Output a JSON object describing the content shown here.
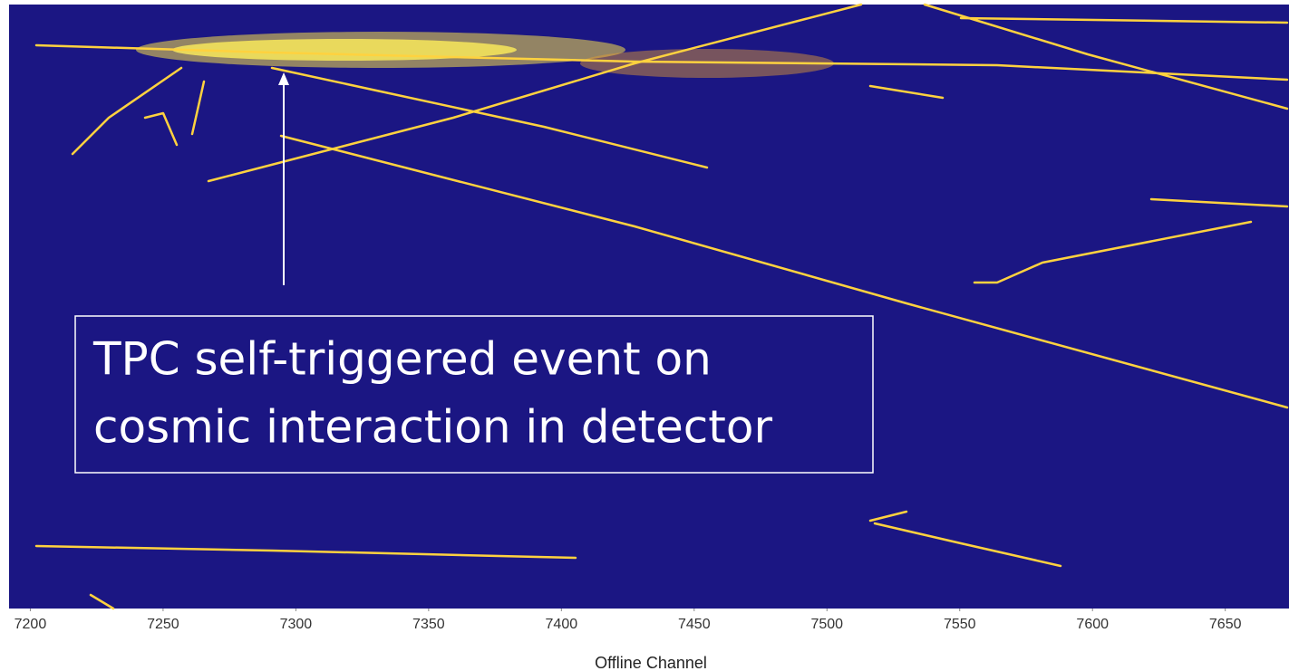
{
  "chart_data": {
    "type": "heatmap",
    "xlabel": "Offline Channel",
    "xlim": [
      7192,
      7674
    ],
    "xticks": [
      7200,
      7250,
      7300,
      7350,
      7400,
      7450,
      7500,
      7550,
      7600,
      7650
    ],
    "annotation": [
      "TPC self-triggered event on",
      "cosmic interaction in detector"
    ],
    "background": "#1b1683",
    "track_color": "#ffd23f"
  }
}
